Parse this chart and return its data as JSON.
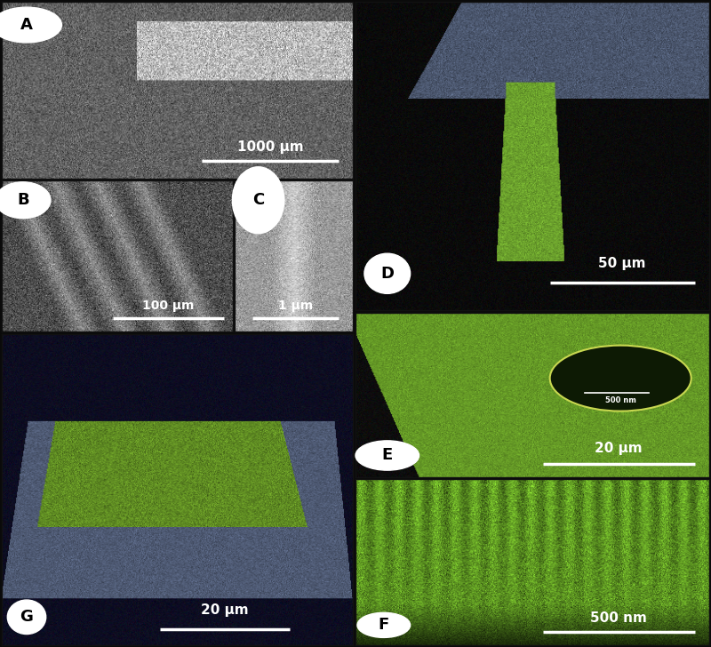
{
  "panel_positions": {
    "A": [
      0.003,
      0.724,
      0.493,
      0.273
    ],
    "B": [
      0.003,
      0.487,
      0.325,
      0.234
    ],
    "C": [
      0.33,
      0.487,
      0.166,
      0.234
    ],
    "D": [
      0.5,
      0.52,
      0.497,
      0.477
    ],
    "E": [
      0.5,
      0.263,
      0.497,
      0.254
    ],
    "F": [
      0.5,
      0.003,
      0.497,
      0.257
    ],
    "G": [
      0.003,
      0.003,
      0.493,
      0.481
    ]
  },
  "scale_texts": {
    "A": "1000 μm",
    "B": "100 μm",
    "C": "1 μm",
    "D": "50 μm",
    "E": "20 μm",
    "F": "500 nm",
    "G": "20 μm"
  },
  "inset_scale_E": "500 nm",
  "figure_bg": "#0a0a0a"
}
